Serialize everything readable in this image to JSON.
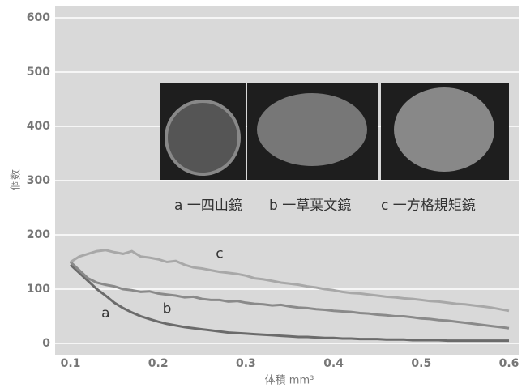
{
  "chart_data": {
    "type": "line",
    "x_label": "体積 mm³",
    "y_label": "個数",
    "inset_labels": [
      "a 一四山鏡",
      "b 一草葉文鏡",
      "c 一方格規矩鏡"
    ],
    "x": [
      0.1,
      0.11,
      0.12,
      0.13,
      0.14,
      0.15,
      0.16,
      0.17,
      0.18,
      0.19,
      0.2,
      0.21,
      0.22,
      0.23,
      0.24,
      0.25,
      0.26,
      0.27,
      0.28,
      0.29,
      0.3,
      0.31,
      0.32,
      0.33,
      0.34,
      0.35,
      0.36,
      0.37,
      0.38,
      0.39,
      0.4,
      0.41,
      0.42,
      0.43,
      0.44,
      0.45,
      0.46,
      0.47,
      0.48,
      0.49,
      0.5,
      0.51,
      0.52,
      0.53,
      0.54,
      0.55,
      0.56,
      0.57,
      0.58,
      0.59,
      0.6
    ],
    "series": [
      {
        "name": "a",
        "color": "#6b6b6b",
        "values": [
          145,
          130,
          115,
          100,
          88,
          75,
          65,
          57,
          50,
          45,
          40,
          36,
          33,
          30,
          28,
          26,
          24,
          22,
          20,
          19,
          18,
          17,
          16,
          15,
          14,
          13,
          12,
          12,
          11,
          10,
          10,
          9,
          9,
          8,
          8,
          8,
          7,
          7,
          7,
          6,
          6,
          6,
          6,
          5,
          5,
          5,
          5,
          5,
          5,
          5,
          5
        ]
      },
      {
        "name": "b",
        "color": "#8a8a8a",
        "values": [
          150,
          135,
          120,
          112,
          108,
          105,
          100,
          98,
          95,
          96,
          92,
          90,
          88,
          85,
          86,
          82,
          80,
          80,
          77,
          78,
          75,
          73,
          72,
          70,
          71,
          68,
          66,
          65,
          63,
          62,
          60,
          59,
          58,
          56,
          55,
          53,
          52,
          50,
          50,
          48,
          46,
          45,
          43,
          42,
          40,
          38,
          36,
          34,
          32,
          30,
          28
        ]
      },
      {
        "name": "c",
        "color": "#a8a8a8",
        "values": [
          150,
          160,
          165,
          170,
          172,
          168,
          165,
          170,
          160,
          158,
          155,
          150,
          152,
          145,
          140,
          138,
          135,
          132,
          130,
          128,
          125,
          120,
          118,
          115,
          112,
          110,
          108,
          105,
          103,
          100,
          98,
          95,
          93,
          92,
          90,
          88,
          86,
          85,
          83,
          82,
          80,
          78,
          77,
          75,
          73,
          72,
          70,
          68,
          66,
          63,
          60
        ]
      }
    ],
    "xlim": [
      0.1,
      0.6
    ],
    "ylim": [
      0,
      600
    ],
    "xticks": [
      0.1,
      0.2,
      0.3,
      0.4,
      0.5,
      0.6
    ],
    "yticks": [
      0,
      100,
      200,
      300,
      400,
      500,
      600
    ],
    "grid": true
  }
}
